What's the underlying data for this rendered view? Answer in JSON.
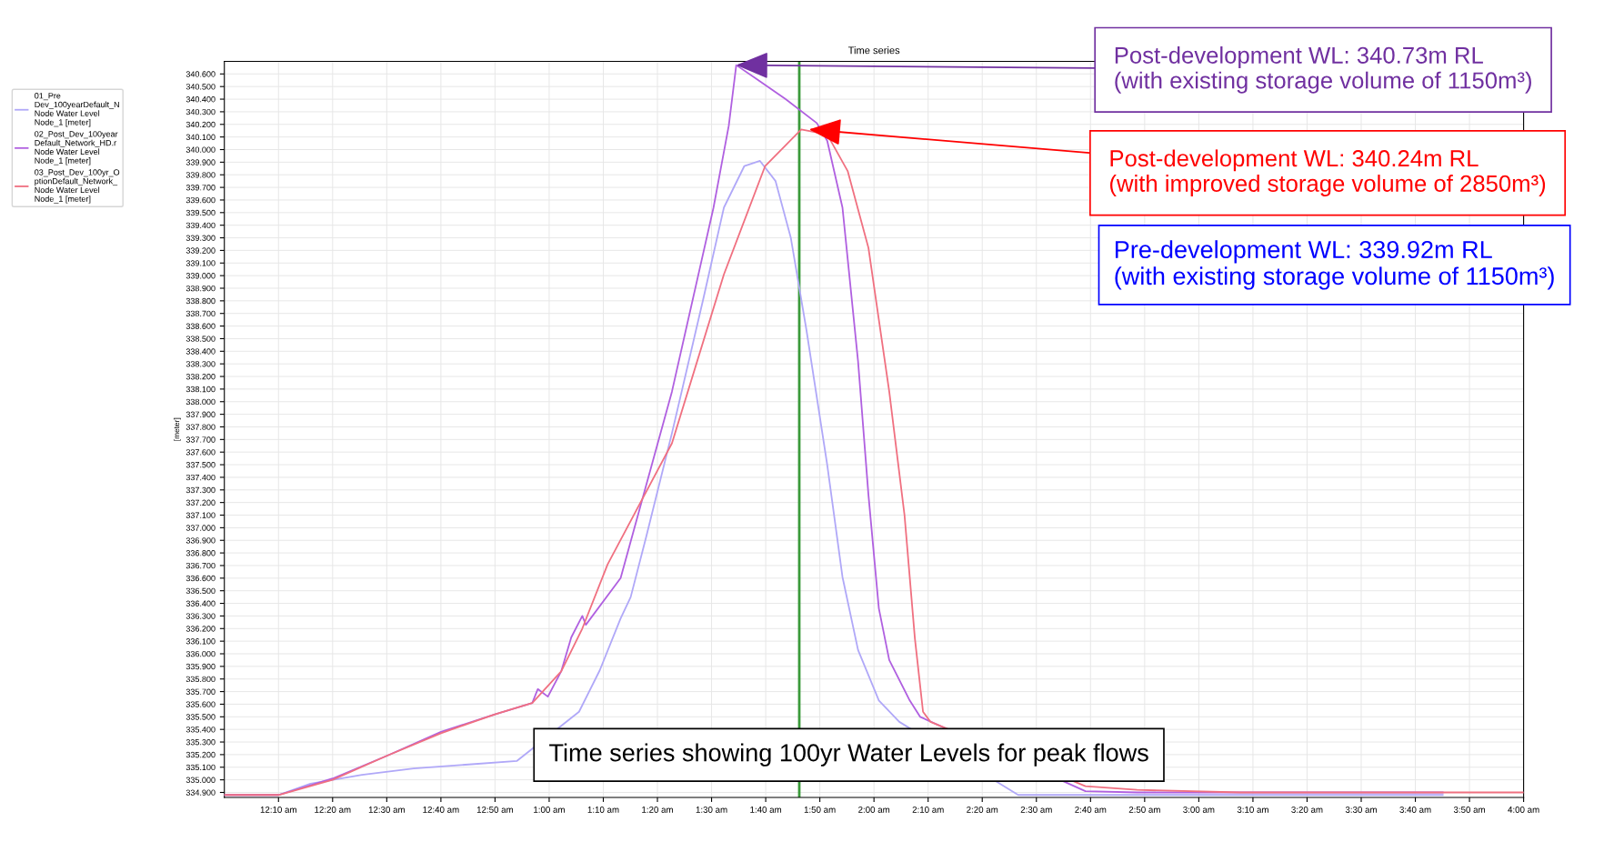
{
  "chart_data": {
    "type": "line",
    "title": "Time series",
    "ylabel": "[meter]",
    "xlim": [
      0,
      4
    ],
    "ylim": [
      334.86,
      340.7
    ],
    "xticks": [
      {
        "value": 0.1667,
        "label": "12:10 am"
      },
      {
        "value": 0.3333,
        "label": "12:20 am"
      },
      {
        "value": 0.5,
        "label": "12:30 am"
      },
      {
        "value": 0.6667,
        "label": "12:40 am"
      },
      {
        "value": 0.8333,
        "label": "12:50 am"
      },
      {
        "value": 1,
        "label": "1:00 am"
      },
      {
        "value": 1.1667,
        "label": "1:10 am"
      },
      {
        "value": 1.3333,
        "label": "1:20 am"
      },
      {
        "value": 1.5,
        "label": "1:30 am"
      },
      {
        "value": 1.6667,
        "label": "1:40 am"
      },
      {
        "value": 1.8333,
        "label": "1:50 am"
      },
      {
        "value": 2,
        "label": "2:00 am"
      },
      {
        "value": 2.1667,
        "label": "2:10 am"
      },
      {
        "value": 2.3333,
        "label": "2:20 am"
      },
      {
        "value": 2.5,
        "label": "2:30 am"
      },
      {
        "value": 2.6667,
        "label": "2:40 am"
      },
      {
        "value": 2.8333,
        "label": "2:50 am"
      },
      {
        "value": 3,
        "label": "3:00 am"
      },
      {
        "value": 3.1667,
        "label": "3:10 am"
      },
      {
        "value": 3.3333,
        "label": "3:20 am"
      },
      {
        "value": 3.5,
        "label": "3:30 am"
      },
      {
        "value": 3.6667,
        "label": "3:40 am"
      },
      {
        "value": 3.8333,
        "label": "3:50 am"
      },
      {
        "value": 4,
        "label": "4:00 am"
      }
    ],
    "yticks": [
      {
        "value": 334.9,
        "label": "334.900"
      },
      {
        "value": 335.0,
        "label": "335.000"
      },
      {
        "value": 335.1,
        "label": "335.100"
      },
      {
        "value": 335.2,
        "label": "335.200"
      },
      {
        "value": 335.3,
        "label": "335.300"
      },
      {
        "value": 335.4,
        "label": "335.400"
      },
      {
        "value": 335.5,
        "label": "335.500"
      },
      {
        "value": 335.6,
        "label": "335.600"
      },
      {
        "value": 335.7,
        "label": "335.700"
      },
      {
        "value": 335.8,
        "label": "335.800"
      },
      {
        "value": 335.9,
        "label": "335.900"
      },
      {
        "value": 336.0,
        "label": "336.000"
      },
      {
        "value": 336.1,
        "label": "336.100"
      },
      {
        "value": 336.2,
        "label": "336.200"
      },
      {
        "value": 336.3,
        "label": "336.300"
      },
      {
        "value": 336.4,
        "label": "336.400"
      },
      {
        "value": 336.5,
        "label": "336.500"
      },
      {
        "value": 336.6,
        "label": "336.600"
      },
      {
        "value": 336.7,
        "label": "336.700"
      },
      {
        "value": 336.8,
        "label": "336.800"
      },
      {
        "value": 336.9,
        "label": "336.900"
      },
      {
        "value": 337.0,
        "label": "337.000"
      },
      {
        "value": 337.1,
        "label": "337.100"
      },
      {
        "value": 337.2,
        "label": "337.200"
      },
      {
        "value": 337.3,
        "label": "337.300"
      },
      {
        "value": 337.4,
        "label": "337.400"
      },
      {
        "value": 337.5,
        "label": "337.500"
      },
      {
        "value": 337.6,
        "label": "337.600"
      },
      {
        "value": 337.7,
        "label": "337.700"
      },
      {
        "value": 337.8,
        "label": "337.800"
      },
      {
        "value": 337.9,
        "label": "337.900"
      },
      {
        "value": 338.0,
        "label": "338.000"
      },
      {
        "value": 338.1,
        "label": "338.100"
      },
      {
        "value": 338.2,
        "label": "338.200"
      },
      {
        "value": 338.3,
        "label": "338.300"
      },
      {
        "value": 338.4,
        "label": "338.400"
      },
      {
        "value": 338.5,
        "label": "338.500"
      },
      {
        "value": 338.6,
        "label": "338.600"
      },
      {
        "value": 338.7,
        "label": "338.700"
      },
      {
        "value": 338.8,
        "label": "338.800"
      },
      {
        "value": 338.9,
        "label": "338.900"
      },
      {
        "value": 339.0,
        "label": "339.000"
      },
      {
        "value": 339.1,
        "label": "339.100"
      },
      {
        "value": 339.2,
        "label": "339.200"
      },
      {
        "value": 339.3,
        "label": "339.300"
      },
      {
        "value": 339.4,
        "label": "339.400"
      },
      {
        "value": 339.5,
        "label": "339.500"
      },
      {
        "value": 339.6,
        "label": "339.600"
      },
      {
        "value": 339.7,
        "label": "339.700"
      },
      {
        "value": 339.8,
        "label": "339.800"
      },
      {
        "value": 339.9,
        "label": "339.900"
      },
      {
        "value": 340.0,
        "label": "340.000"
      },
      {
        "value": 340.1,
        "label": "340.100"
      },
      {
        "value": 340.2,
        "label": "340.200"
      },
      {
        "value": 340.3,
        "label": "340.300"
      },
      {
        "value": 340.4,
        "label": "340.400"
      },
      {
        "value": 340.5,
        "label": "340.500"
      },
      {
        "value": 340.6,
        "label": "340.600"
      }
    ],
    "grid": true,
    "legend": "left",
    "series": [
      {
        "name": "01_Pre\nDev_100yearDefault_N\nNode Water Level\nNode_1 [meter]",
        "color": "#b0a8f8",
        "x": [
          0,
          0.167,
          0.265,
          0.424,
          0.583,
          0.742,
          0.901,
          1.092,
          1.156,
          1.22,
          1.251,
          1.299,
          1.378,
          1.474,
          1.538,
          1.601,
          1.649,
          1.697,
          1.744,
          1.792,
          1.856,
          1.903,
          1.951,
          2.015,
          2.078,
          2.444,
          3.751
        ],
        "values": [
          334.88,
          334.88,
          334.97,
          335.04,
          335.09,
          335.12,
          335.15,
          335.54,
          335.87,
          336.28,
          336.45,
          336.93,
          337.75,
          338.81,
          339.54,
          339.87,
          339.91,
          339.75,
          339.3,
          338.57,
          337.5,
          336.61,
          336.03,
          335.63,
          335.46,
          334.88,
          334.88
        ]
      },
      {
        "name": "02_Post_Dev_100year\nDefault_Network_HD.r\nNode Water Level\nNode_1 [meter]",
        "color": "#b060e0",
        "x": [
          0,
          0.167,
          0.333,
          0.5,
          0.667,
          0.833,
          0.948,
          0.965,
          0.996,
          1.037,
          1.068,
          1.102,
          1.113,
          1.22,
          1.378,
          1.506,
          1.553,
          1.576,
          1.633,
          1.728,
          1.824,
          1.856,
          1.903,
          1.951,
          1.983,
          2.015,
          2.047,
          2.11,
          2.142,
          2.651,
          2.81,
          3.751
        ],
        "values": [
          334.88,
          334.88,
          335.01,
          335.19,
          335.38,
          335.52,
          335.61,
          335.72,
          335.66,
          335.86,
          336.13,
          336.3,
          336.23,
          336.6,
          338.08,
          339.54,
          340.19,
          340.67,
          340.57,
          340.4,
          340.21,
          340.07,
          339.54,
          338.32,
          337.26,
          336.36,
          335.95,
          335.63,
          335.5,
          334.91,
          334.9,
          334.9
        ]
      },
      {
        "name": "03_Post_Dev_100yr_O\nptionDefault_Network_\nNode Water Level\nNode_1 [meter]",
        "color": "#f07080",
        "x": [
          0,
          0.167,
          0.333,
          0.5,
          0.667,
          0.833,
          0.948,
          1.037,
          1.102,
          1.18,
          1.378,
          1.538,
          1.665,
          1.776,
          1.856,
          1.919,
          1.983,
          2.047,
          2.094,
          2.126,
          2.151,
          2.174,
          2.651,
          2.81,
          3.128,
          4.0
        ],
        "values": [
          334.88,
          334.88,
          335.0,
          335.19,
          335.37,
          335.52,
          335.61,
          335.86,
          336.2,
          336.71,
          337.67,
          339.01,
          339.87,
          340.16,
          340.12,
          339.83,
          339.22,
          338.08,
          337.1,
          336.12,
          335.54,
          335.46,
          334.95,
          334.92,
          334.9,
          334.9
        ]
      }
    ],
    "ref_lines": [
      {
        "axis": "x",
        "value": 1.77,
        "color": "#3a9a3a"
      }
    ],
    "annotations": [
      {
        "text": "Post-development WL: 340.73m RL\n(with existing storage volume of 1150m³)",
        "x": 1.576,
        "y": 340.67
      },
      {
        "text": "Post-development WL: 340.24m RL\n(with improved storage volume of 2850m³)",
        "x": 1.8,
        "y": 340.16
      },
      "Pre-development WL: 339.92m RL\n(with existing storage volume of 1150m³)",
      "Time series showing 100yr Water Levels for peak flows"
    ]
  }
}
